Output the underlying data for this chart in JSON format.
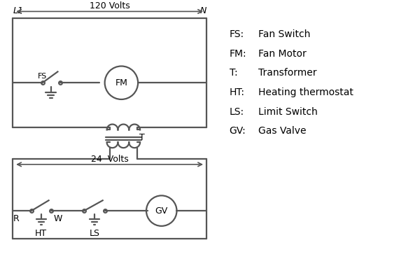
{
  "bg_color": "#ffffff",
  "line_color": "#555555",
  "text_color": "#000000",
  "legend_items": [
    [
      "FS:",
      "Fan Switch"
    ],
    [
      "FM:",
      "Fan Motor"
    ],
    [
      "T:",
      "Transformer"
    ],
    [
      "HT:",
      "Heating thermostat"
    ],
    [
      "LS:",
      "Limit Switch"
    ],
    [
      "GV:",
      "Gas Valve"
    ]
  ],
  "L1_label": "L1",
  "N_label": "N",
  "volts120_label": "120 Volts",
  "volts24_label": "24  Volts",
  "T_label": "T",
  "R_label": "R",
  "W_label": "W",
  "HT_label": "HT",
  "LS_label": "LS",
  "FS_label": "FS",
  "FM_label": "FM",
  "GV_label": "GV"
}
